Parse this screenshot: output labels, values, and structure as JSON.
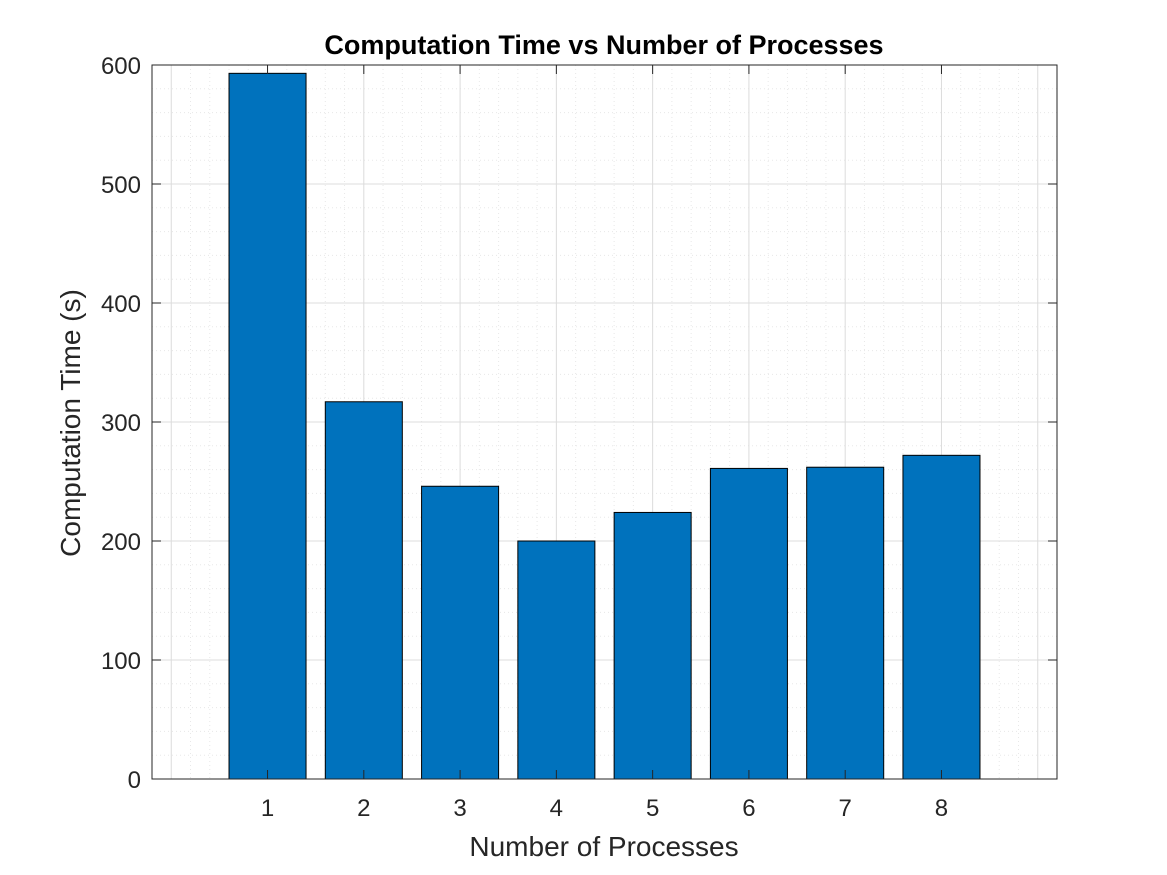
{
  "chart_data": {
    "type": "bar",
    "title": "Computation Time vs Number of Processes",
    "xlabel": "Number of Processes",
    "ylabel": "Computation Time (s)",
    "categories": [
      "1",
      "2",
      "3",
      "4",
      "5",
      "6",
      "7",
      "8"
    ],
    "x": [
      1,
      2,
      3,
      4,
      5,
      6,
      7,
      8
    ],
    "values": [
      593,
      317,
      246,
      200,
      224,
      261,
      262,
      272
    ],
    "xlim": [
      -0.2,
      9.2
    ],
    "ylim": [
      0,
      600
    ],
    "yticks": [
      0,
      100,
      200,
      300,
      400,
      500,
      600
    ],
    "grid": true,
    "minor_grid": true,
    "bar_color": "#0072BD",
    "legend": "none"
  }
}
